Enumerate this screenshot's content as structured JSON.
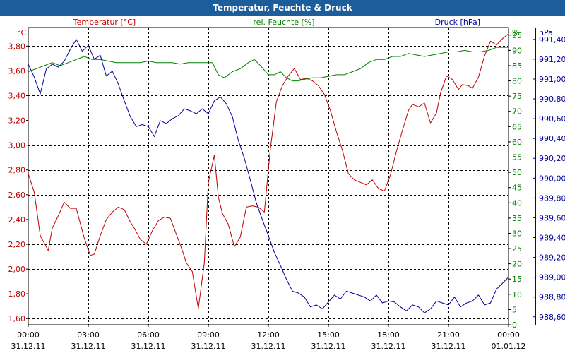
{
  "title": "Temperatur, Feuchte & Druck",
  "colors": {
    "title_bar": "#1c5d9b",
    "temperature": "#c00000",
    "humidity": "#008000",
    "pressure": "#000099",
    "grid": "#000000"
  },
  "chart_data": {
    "type": "line",
    "title": "Temperatur, Feuchte & Druck",
    "grid": true,
    "x_axis": {
      "range": [
        "31.12.11 00:00",
        "01.01.12 00:00"
      ],
      "tick_labels": [
        [
          "00:00",
          "31.12.11"
        ],
        [
          "03:00",
          "31.12.11"
        ],
        [
          "06:00",
          "31.12.11"
        ],
        [
          "09:00",
          "31.12.11"
        ],
        [
          "12:00",
          "31.12.11"
        ],
        [
          "15:00",
          "31.12.11"
        ],
        [
          "18:00",
          "31.12.11"
        ],
        [
          "21:00",
          "31.12.11"
        ],
        [
          "00:00",
          "01.01.12"
        ]
      ]
    },
    "axes": {
      "temperature": {
        "unit": "°C",
        "ylim": [
          1.55,
          3.95
        ],
        "ticks": [
          "1,60",
          "1,80",
          "2,00",
          "2,20",
          "2,40",
          "2,60",
          "2,80",
          "3,00",
          "3,20",
          "3,40",
          "3,60",
          "3,80"
        ],
        "tick_values": [
          1.6,
          1.8,
          2.0,
          2.2,
          2.4,
          2.6,
          2.8,
          3.0,
          3.2,
          3.4,
          3.6,
          3.8
        ]
      },
      "humidity": {
        "unit": "%",
        "ylim": [
          0,
          97.5
        ],
        "ticks": [
          "0",
          "5",
          "10",
          "15",
          "20",
          "25",
          "30",
          "35",
          "40",
          "45",
          "50",
          "55",
          "60",
          "65",
          "70",
          "75",
          "80",
          "85",
          "90",
          "95"
        ],
        "tick_values": [
          0,
          5,
          10,
          15,
          20,
          25,
          30,
          35,
          40,
          45,
          50,
          55,
          60,
          65,
          70,
          75,
          80,
          85,
          90,
          95
        ]
      },
      "pressure": {
        "unit": "hPa",
        "ylim": [
          988.52,
          991.52
        ],
        "ticks": [
          "988,60",
          "988,80",
          "989,00",
          "989,20",
          "989,40",
          "989,60",
          "989,80",
          "990,00",
          "990,20",
          "990,40",
          "990,60",
          "990,80",
          "991,00",
          "991,20",
          "991,40"
        ],
        "tick_values": [
          988.6,
          988.8,
          989.0,
          989.2,
          989.4,
          989.6,
          989.8,
          990.0,
          990.2,
          990.4,
          990.6,
          990.8,
          991.0,
          991.2,
          991.4
        ]
      }
    },
    "series": [
      {
        "name": "Temperatur [°C]",
        "axis": "temperature",
        "x_hours": [
          0,
          0.3,
          0.6,
          1.0,
          1.2,
          1.5,
          1.8,
          2.1,
          2.4,
          2.8,
          3.1,
          3.3,
          3.6,
          3.9,
          4.2,
          4.5,
          4.8,
          5.1,
          5.3,
          5.6,
          5.9,
          6.2,
          6.5,
          6.8,
          7.1,
          7.4,
          7.7,
          7.9,
          8.2,
          8.5,
          8.8,
          9.0,
          9.3,
          9.5,
          9.7,
          10.0,
          10.3,
          10.6,
          10.9,
          11.2,
          11.5,
          11.8,
          12.1,
          12.4,
          12.7,
          13.0,
          13.3,
          13.6,
          13.9,
          14.2,
          14.5,
          14.8,
          15.1,
          15.4,
          15.7,
          16.0,
          16.3,
          16.6,
          16.9,
          17.2,
          17.5,
          17.8,
          18.1,
          18.4,
          18.7,
          19.0,
          19.2,
          19.5,
          19.8,
          20.1,
          20.4,
          20.6,
          20.9,
          21.2,
          21.5,
          21.7,
          22.0,
          22.2,
          22.5,
          22.8,
          23.1,
          23.4,
          23.7,
          24.0
        ],
        "values": [
          2.77,
          2.62,
          2.27,
          2.15,
          2.33,
          2.43,
          2.54,
          2.49,
          2.49,
          2.25,
          2.11,
          2.12,
          2.27,
          2.4,
          2.46,
          2.5,
          2.48,
          2.38,
          2.33,
          2.24,
          2.2,
          2.31,
          2.39,
          2.42,
          2.41,
          2.28,
          2.15,
          2.05,
          1.98,
          1.68,
          2.05,
          2.7,
          2.92,
          2.58,
          2.45,
          2.36,
          2.18,
          2.26,
          2.5,
          2.51,
          2.5,
          2.46,
          2.97,
          3.35,
          3.48,
          3.56,
          3.62,
          3.53,
          3.54,
          3.52,
          3.48,
          3.41,
          3.28,
          3.11,
          2.96,
          2.77,
          2.72,
          2.7,
          2.68,
          2.72,
          2.65,
          2.63,
          2.76,
          2.95,
          3.12,
          3.28,
          3.33,
          3.31,
          3.34,
          3.18,
          3.26,
          3.42,
          3.56,
          3.53,
          3.45,
          3.49,
          3.48,
          3.46,
          3.55,
          3.72,
          3.84,
          3.81,
          3.86,
          3.9
        ]
      },
      {
        "name": "rel. Feuchte [%]",
        "axis": "humidity",
        "x_hours": [
          0,
          0.4,
          0.8,
          1.2,
          1.6,
          2.0,
          2.4,
          2.8,
          3.2,
          3.6,
          4.0,
          4.4,
          4.8,
          5.2,
          5.6,
          6.0,
          6.4,
          6.8,
          7.2,
          7.6,
          8.0,
          8.4,
          8.8,
          9.2,
          9.5,
          9.8,
          10.2,
          10.6,
          11.0,
          11.3,
          11.6,
          12.0,
          12.3,
          12.6,
          12.9,
          13.2,
          13.5,
          13.8,
          14.2,
          14.6,
          15.0,
          15.4,
          15.8,
          16.2,
          16.6,
          17.0,
          17.4,
          17.8,
          18.2,
          18.6,
          19.0,
          19.4,
          19.8,
          20.2,
          20.6,
          21.0,
          21.4,
          21.8,
          22.2,
          22.6,
          23.0,
          23.4,
          23.8,
          24.0
        ],
        "values": [
          83,
          84,
          85,
          86,
          85,
          86,
          87,
          88,
          87,
          87,
          86.5,
          86,
          86,
          86,
          86,
          86.5,
          86,
          86,
          86,
          85.5,
          86,
          86,
          86,
          86,
          82,
          81,
          83,
          84,
          86,
          87,
          85,
          82,
          82,
          83,
          81,
          80,
          80,
          80.5,
          81,
          81,
          81.5,
          82,
          82,
          83,
          84,
          86,
          87,
          87,
          88,
          88,
          89,
          88.5,
          88,
          88.5,
          89,
          89.5,
          89.5,
          90,
          89.5,
          89.5,
          90,
          91,
          91,
          91
        ]
      },
      {
        "name": "Druck [hPa]",
        "axis": "pressure",
        "x_hours": [
          0,
          0.3,
          0.6,
          0.9,
          1.2,
          1.5,
          1.8,
          2.1,
          2.4,
          2.7,
          3.0,
          3.3,
          3.6,
          3.9,
          4.2,
          4.5,
          4.8,
          5.1,
          5.4,
          5.7,
          6.0,
          6.3,
          6.6,
          6.9,
          7.2,
          7.5,
          7.8,
          8.1,
          8.4,
          8.7,
          9.0,
          9.3,
          9.6,
          9.9,
          10.2,
          10.5,
          10.8,
          11.1,
          11.4,
          11.7,
          12.0,
          12.3,
          12.6,
          12.9,
          13.2,
          13.5,
          13.8,
          14.1,
          14.4,
          14.7,
          15.0,
          15.3,
          15.6,
          15.9,
          16.2,
          16.5,
          16.8,
          17.1,
          17.4,
          17.7,
          18.0,
          18.3,
          18.6,
          18.9,
          19.2,
          19.5,
          19.8,
          20.1,
          20.4,
          20.7,
          21.0,
          21.3,
          21.6,
          21.9,
          22.2,
          22.5,
          22.8,
          23.1,
          23.4,
          23.7,
          24.0
        ],
        "values": [
          991.15,
          991.02,
          990.85,
          991.1,
          991.15,
          991.12,
          991.18,
          991.3,
          991.4,
          991.28,
          991.34,
          991.2,
          991.24,
          991.03,
          991.08,
          990.95,
          990.78,
          990.62,
          990.52,
          990.54,
          990.52,
          990.42,
          990.58,
          990.55,
          990.6,
          990.63,
          990.7,
          990.68,
          990.65,
          990.7,
          990.65,
          990.78,
          990.82,
          990.75,
          990.62,
          990.38,
          990.2,
          989.98,
          989.75,
          989.58,
          989.42,
          989.25,
          989.12,
          988.98,
          988.86,
          988.84,
          988.8,
          988.7,
          988.72,
          988.68,
          988.75,
          988.82,
          988.78,
          988.86,
          988.84,
          988.82,
          988.8,
          988.76,
          988.82,
          988.74,
          988.76,
          988.75,
          988.7,
          988.66,
          988.72,
          988.7,
          988.64,
          988.68,
          988.76,
          988.74,
          988.72,
          988.8,
          988.7,
          988.74,
          988.76,
          988.82,
          988.72,
          988.74,
          988.88,
          988.94,
          989.0
        ]
      }
    ]
  }
}
